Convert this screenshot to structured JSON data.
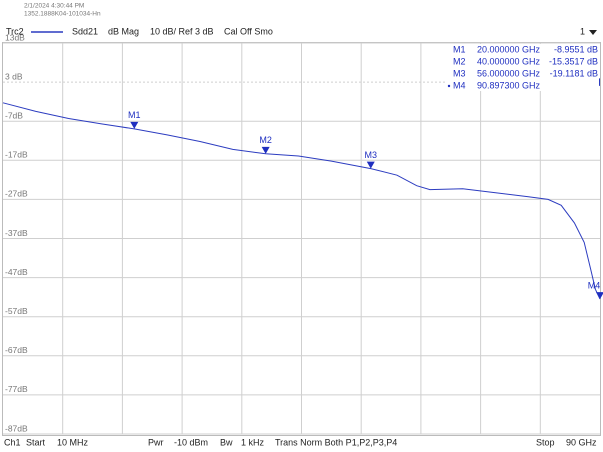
{
  "header": {
    "timestamp": "2/1/2024 4:30:44 PM",
    "device": "1352.1888K04-101034-Hn",
    "trace": "Trc2",
    "format": "dB Mag",
    "scale": "10 dB/ Ref 3 dB",
    "cal": "Cal Off Smo",
    "channel_index": "1"
  },
  "footer": {
    "channel": "Ch1",
    "start_label": "Start",
    "start": "10 MHz",
    "power_label": "Pwr",
    "power": "-10 dBm",
    "bw_label": "Bw",
    "bw": "1 kHz",
    "mode": "Trans Norm Both P1,P2,P3,P4",
    "stop_label": "Stop",
    "stop": "90 GHz"
  },
  "chart_data": {
    "type": "line",
    "x": [
      0.01,
      5,
      10,
      15,
      20,
      25,
      30,
      35,
      40,
      45,
      50,
      56,
      60,
      63,
      65,
      70,
      75,
      80,
      83,
      85,
      87,
      88.5,
      89.5,
      90.2,
      90.9
    ],
    "series": [
      {
        "name": "Sdd21",
        "color": "#2c3cc0",
        "values": [
          -2.3,
          -4.5,
          -6.3,
          -7.7,
          -8.96,
          -10.5,
          -12.2,
          -14.2,
          -15.35,
          -15.9,
          -17.2,
          -19.12,
          -20.8,
          -23.5,
          -24.5,
          -24.3,
          -25.3,
          -26.3,
          -27.0,
          -28.5,
          -33,
          -38,
          -45,
          -50,
          -52.5
        ]
      }
    ],
    "xlim": [
      0.01,
      90.9
    ],
    "ylim": [
      -87,
      13
    ],
    "yticks": [
      {
        "value": 13,
        "label": "13dB"
      },
      {
        "value": 3,
        "label": "3 dB"
      },
      {
        "value": -7,
        "label": "-7dB"
      },
      {
        "value": -17,
        "label": "-17dB"
      },
      {
        "value": -27,
        "label": "-27dB"
      },
      {
        "value": -37,
        "label": "-37dB"
      },
      {
        "value": -47,
        "label": "-47dB"
      },
      {
        "value": -57,
        "label": "-57dB"
      },
      {
        "value": -67,
        "label": "-67dB"
      },
      {
        "value": -77,
        "label": "-77dB"
      },
      {
        "value": -87,
        "label": "-87dB"
      }
    ],
    "grid": true,
    "markers": [
      {
        "name": "M1",
        "x": 20,
        "x_label": "20.000000 GHz",
        "value": -8.9551,
        "value_label": "-8.9551 dB"
      },
      {
        "name": "M2",
        "x": 40,
        "x_label": "40.000000 GHz",
        "value": -15.3517,
        "value_label": "-15.3517 dB"
      },
      {
        "name": "M3",
        "x": 56,
        "x_label": "56.000000 GHz",
        "value": -19.1181,
        "value_label": "-19.1181 dB"
      },
      {
        "name": "M4",
        "x": 90.8973,
        "x_label": "90.897300 GHz",
        "value": -52.5
      }
    ]
  }
}
